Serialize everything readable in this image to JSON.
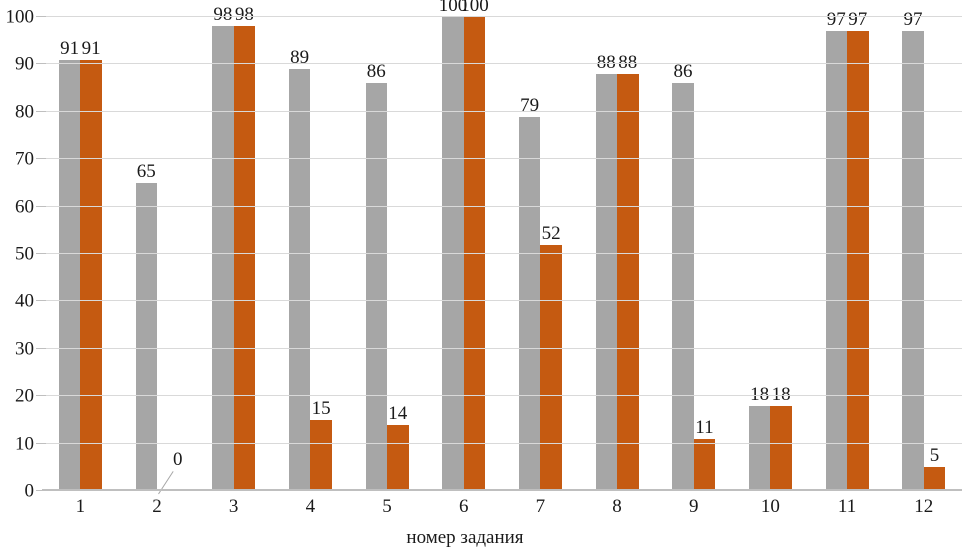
{
  "chart_data": {
    "type": "bar",
    "title": "",
    "xlabel": "номер задания",
    "ylabel": "",
    "ylim": [
      0,
      100
    ],
    "yticks": [
      0,
      10,
      20,
      30,
      40,
      50,
      60,
      70,
      80,
      90,
      100
    ],
    "grid": true,
    "legend_position": "none",
    "categories": [
      "1",
      "2",
      "3",
      "4",
      "5",
      "6",
      "7",
      "8",
      "9",
      "10",
      "11",
      "12"
    ],
    "series": [
      {
        "name": "series-gray",
        "color": "#a6a6a6",
        "values": [
          91,
          65,
          98,
          89,
          86,
          100,
          79,
          88,
          86,
          18,
          97,
          97
        ]
      },
      {
        "name": "series-orange",
        "color": "#c55a11",
        "values": [
          91,
          0,
          98,
          15,
          14,
          100,
          52,
          88,
          11,
          18,
          97,
          5
        ]
      }
    ],
    "data_labels": true,
    "zero_callout": {
      "series_index": 1,
      "category_index": 1,
      "label": "0"
    }
  },
  "colors": {
    "bar_gray": "#a6a6a6",
    "bar_orange": "#c55a11",
    "gridline": "#d9d9d9",
    "axis_line": "#bfbfbf",
    "text": "#1a1a1a",
    "leader_line": "#a6a6a6"
  }
}
